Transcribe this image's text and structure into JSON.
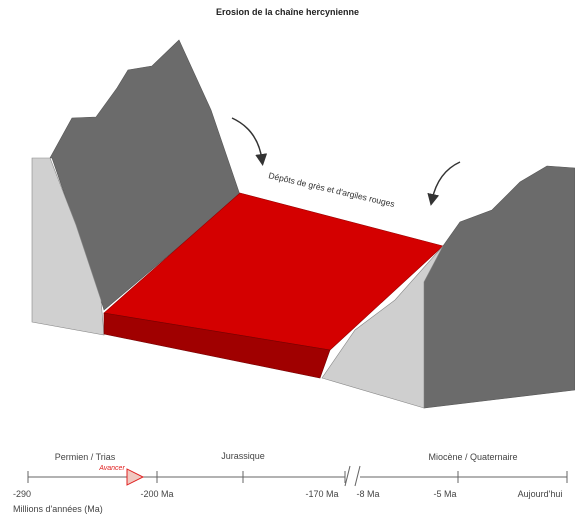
{
  "title": "Erosion de la chaîne hercynienne",
  "diagram": {
    "deposit_label": "Dépôts de grès et d'argiles rouges",
    "colors": {
      "deposit_top": "#d40000",
      "deposit_side": "#a00000",
      "mountain_face": "#6b6b6b",
      "mountain_side": "#cfcfcf"
    }
  },
  "timeline": {
    "periods": [
      "Permien / Trias",
      "Jurassique",
      "Miocène / Quaternaire"
    ],
    "ticks": [
      "-290",
      "-200 Ma",
      "-170 Ma",
      "-8 Ma",
      "-5 Ma",
      "Aujourd'hui"
    ],
    "unit": "Millions d'années (Ma)",
    "current_button": "Avancer",
    "accent": "#e02020"
  }
}
